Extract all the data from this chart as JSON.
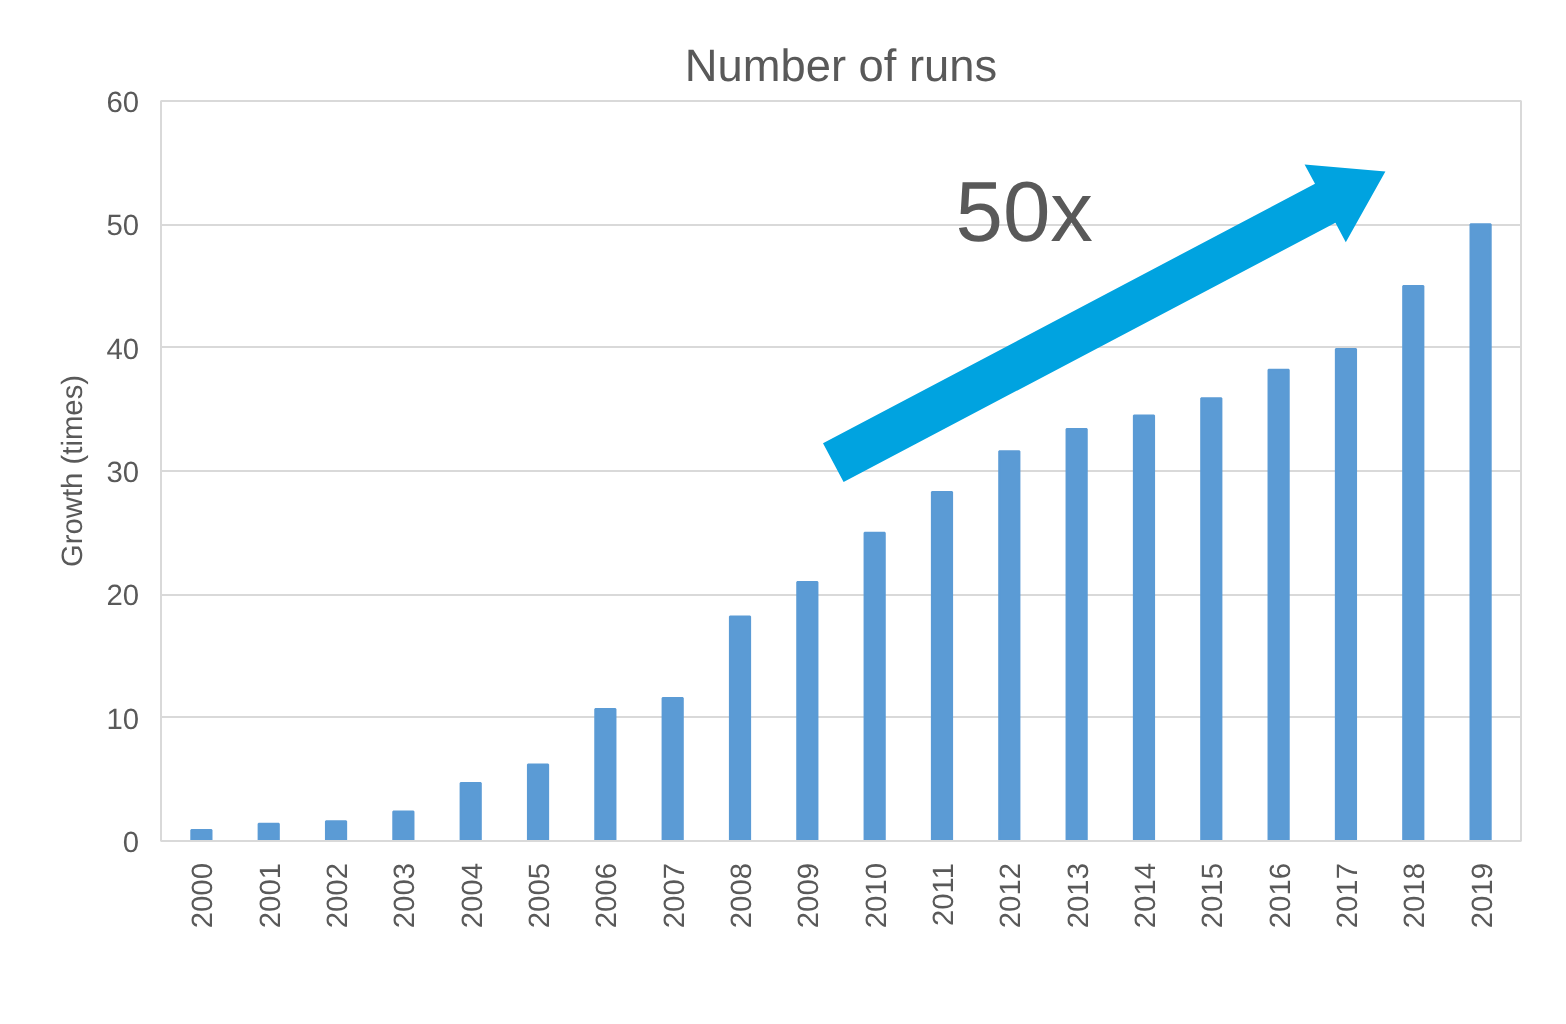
{
  "chart_data": {
    "type": "bar",
    "title": "Number of runs",
    "ylabel": "Growth (times)",
    "categories": [
      "2000",
      "2001",
      "2002",
      "2003",
      "2004",
      "2005",
      "2006",
      "2007",
      "2008",
      "2009",
      "2010",
      "2011",
      "2012",
      "2013",
      "2014",
      "2015",
      "2016",
      "2017",
      "2018",
      "2019"
    ],
    "values": [
      0.9,
      1.4,
      1.6,
      2.4,
      4.7,
      6.2,
      10.7,
      11.6,
      18.2,
      21.0,
      25.0,
      28.3,
      31.6,
      33.4,
      34.5,
      35.9,
      38.2,
      39.9,
      45.0,
      50.0
    ],
    "color": "#5b9bd5",
    "ylim": [
      0,
      60
    ],
    "yticks": [
      0,
      10,
      20,
      30,
      40,
      50,
      60
    ],
    "grid": "y",
    "annotations": [
      "50x"
    ]
  }
}
